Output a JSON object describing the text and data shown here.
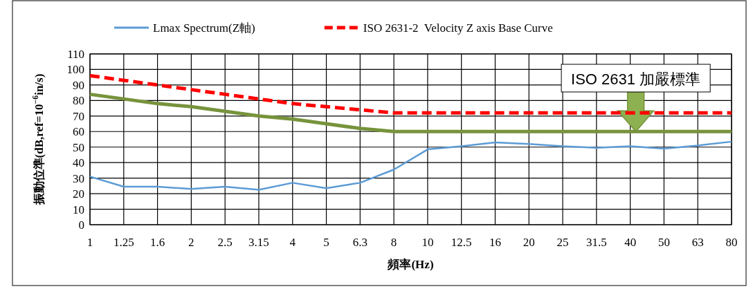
{
  "chart_data": {
    "type": "line",
    "categories": [
      "1",
      "1.25",
      "1.6",
      "2",
      "2.5",
      "3.15",
      "4",
      "5",
      "6.3",
      "8",
      "10",
      "12.5",
      "16",
      "20",
      "25",
      "31.5",
      "40",
      "50",
      "63",
      "80"
    ],
    "xlabel": "頻率(Hz)",
    "ylabel": "振動位準(dB,ref=10$^{−6}$in/s)",
    "ylim": [
      0,
      110
    ],
    "yticks": [
      0,
      10,
      20,
      30,
      40,
      50,
      60,
      70,
      80,
      90,
      100,
      110
    ],
    "grid": true,
    "legend": "top",
    "series": [
      {
        "name": "Lmax Spectrum(Z軸)",
        "color": "#5b9bd5",
        "values": [
          31,
          24.5,
          24.5,
          23,
          24.5,
          22.5,
          27,
          23.5,
          27,
          35.5,
          48.5,
          50.5,
          53,
          52,
          50.5,
          49.5,
          50.5,
          49,
          51,
          53.5
        ]
      },
      {
        "name": "ISO 2631-2  Velocity Z axis Base Curve",
        "color": "#ff0000",
        "line_style": "dashed",
        "values": [
          96,
          93,
          90,
          87,
          84,
          81,
          78,
          76,
          74,
          72,
          72,
          72,
          72,
          72,
          72,
          72,
          72,
          72,
          72,
          72
        ]
      },
      {
        "color": "#77933c",
        "values": [
          84,
          81,
          78,
          76,
          73,
          70,
          68,
          65,
          62,
          60,
          60,
          60,
          60,
          60,
          60,
          60,
          60,
          60,
          60,
          60
        ]
      }
    ],
    "annotations": [
      {
        "text": "ISO 2631 加嚴標準",
        "x": "40",
        "y": 60
      }
    ]
  }
}
